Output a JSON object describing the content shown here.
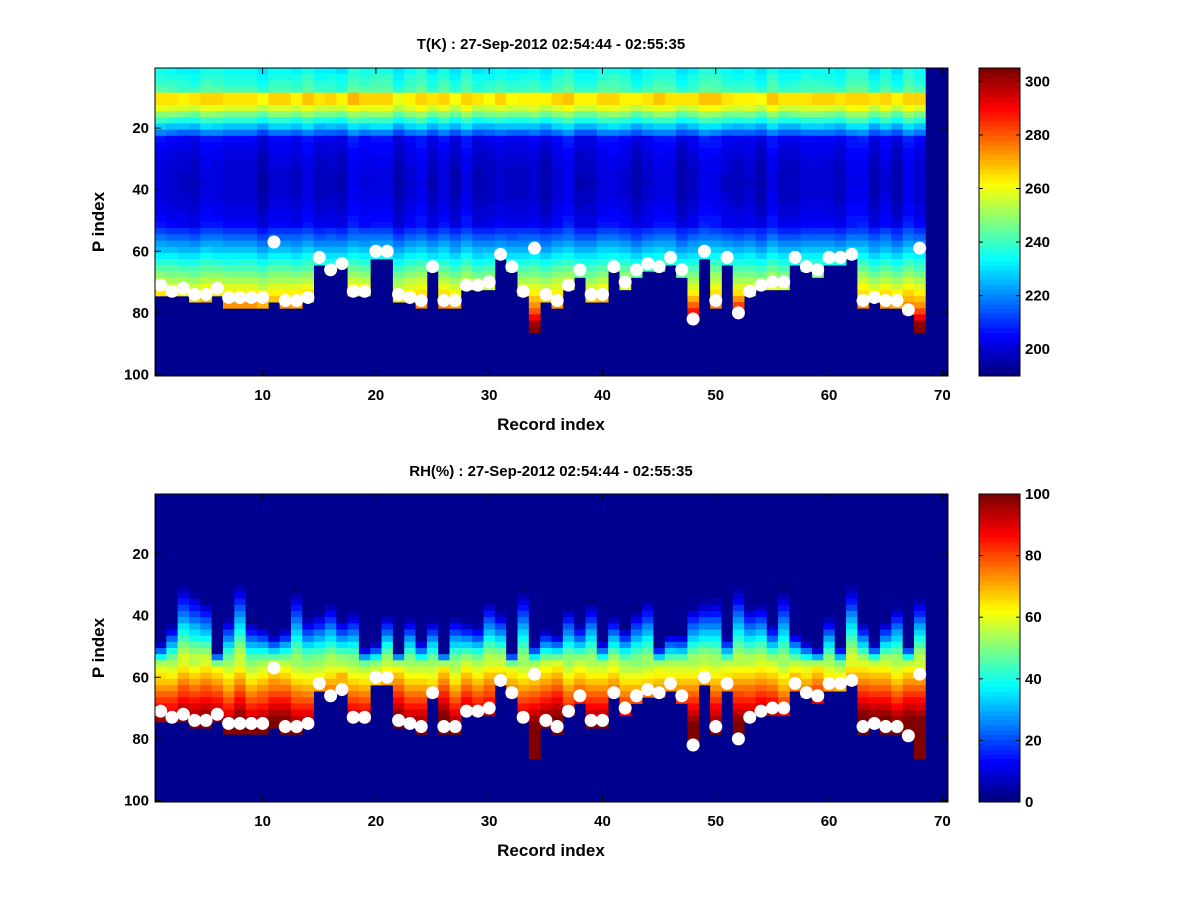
{
  "chart_data": [
    {
      "type": "heatmap",
      "title": "T(K) : 27-Sep-2012 02:54:44 - 02:55:35",
      "xlabel": "Record index",
      "ylabel": "P index",
      "xlim": [
        0.5,
        70.5
      ],
      "ylim": [
        0.5,
        100.5
      ],
      "y_reversed": true,
      "xticks": [
        10,
        20,
        30,
        40,
        50,
        60,
        70
      ],
      "yticks": [
        20,
        40,
        60,
        80,
        100
      ],
      "colormap": "jet",
      "clim": [
        190,
        305
      ],
      "colorbar_ticks": [
        200,
        220,
        240,
        260,
        280,
        300
      ],
      "field": "temperature",
      "n_records_with_data": 68
    },
    {
      "type": "heatmap",
      "title": "RH(%) : 27-Sep-2012 02:54:44 - 02:55:35",
      "xlabel": "Record index",
      "ylabel": "P index",
      "xlim": [
        0.5,
        70.5
      ],
      "ylim": [
        0.5,
        100.5
      ],
      "y_reversed": true,
      "xticks": [
        10,
        20,
        30,
        40,
        50,
        60,
        70
      ],
      "yticks": [
        20,
        40,
        60,
        80,
        100
      ],
      "colormap": "jet",
      "clim": [
        0,
        100
      ],
      "colorbar_ticks": [
        0,
        20,
        40,
        60,
        80,
        100
      ],
      "field": "relative_humidity",
      "n_records_with_data": 68
    }
  ],
  "surface": {
    "records": [
      1,
      2,
      3,
      4,
      5,
      6,
      7,
      8,
      9,
      10,
      11,
      12,
      13,
      14,
      15,
      16,
      17,
      18,
      19,
      20,
      21,
      22,
      23,
      24,
      25,
      26,
      27,
      28,
      29,
      30,
      31,
      32,
      33,
      34,
      35,
      36,
      37,
      38,
      39,
      40,
      41,
      42,
      43,
      44,
      45,
      46,
      47,
      48,
      49,
      50,
      51,
      52,
      53,
      54,
      55,
      56,
      57,
      58,
      59,
      60,
      61,
      62,
      63,
      64,
      65,
      66,
      67,
      68
    ],
    "marker_p_index": [
      71,
      73,
      72,
      74,
      74,
      72,
      75,
      75,
      75,
      75,
      57,
      76,
      76,
      75,
      62,
      66,
      64,
      73,
      73,
      60,
      60,
      74,
      75,
      76,
      65,
      76,
      76,
      71,
      71,
      70,
      61,
      65,
      73,
      59,
      74,
      76,
      71,
      66,
      74,
      74,
      65,
      70,
      66,
      64,
      65,
      62,
      66,
      82,
      60,
      76,
      62,
      80,
      73,
      71,
      70,
      70,
      62,
      65,
      66,
      62,
      62,
      61,
      76,
      75,
      76,
      76,
      79,
      59
    ],
    "data_bottom_p_index": [
      73,
      74,
      74,
      76,
      76,
      74,
      77,
      77,
      77,
      77,
      76,
      77,
      77,
      76,
      63,
      66,
      64,
      74,
      74,
      61,
      61,
      75,
      76,
      77,
      66,
      77,
      77,
      72,
      72,
      71,
      62,
      66,
      74,
      86,
      75,
      77,
      72,
      67,
      75,
      75,
      66,
      71,
      67,
      65,
      66,
      63,
      67,
      82,
      61,
      77,
      63,
      80,
      74,
      72,
      71,
      71,
      63,
      66,
      67,
      63,
      63,
      62,
      77,
      76,
      77,
      77,
      80,
      85
    ],
    "marker_color": "#ffffff"
  }
}
